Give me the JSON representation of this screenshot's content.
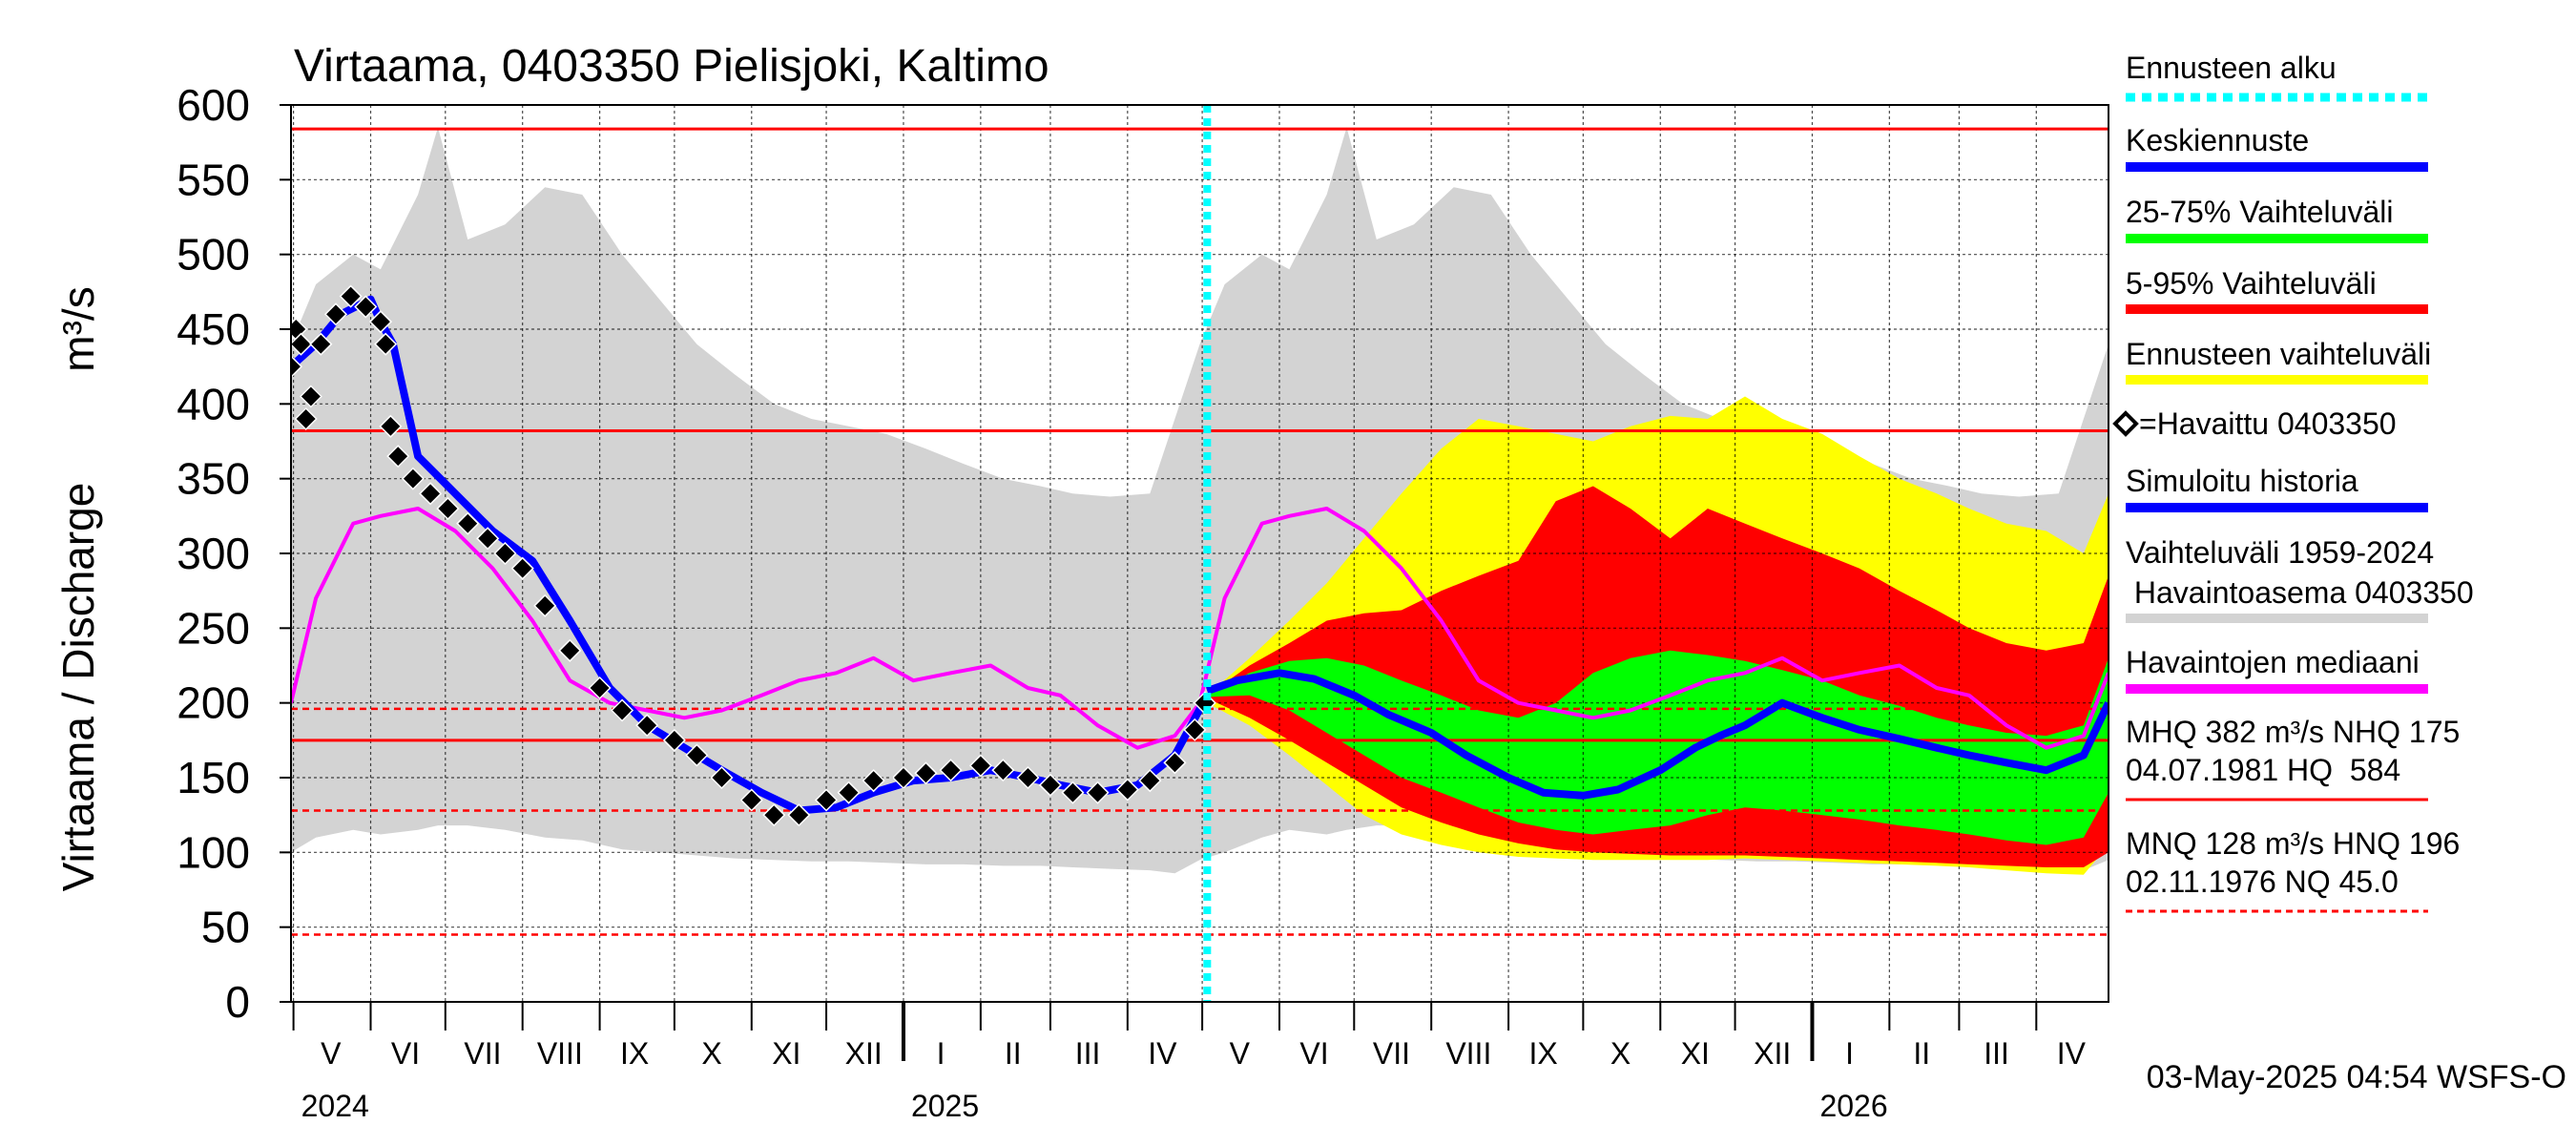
{
  "chart_data": {
    "type": "area",
    "title": "Virtaama, 0403350 Pielisjoki, Kaltimo",
    "ylabel": "Virtaama / Discharge",
    "yunit": "m³/s",
    "ylim": [
      0,
      600
    ],
    "yticks": [
      0,
      50,
      100,
      150,
      200,
      250,
      300,
      350,
      400,
      450,
      500,
      550,
      600
    ],
    "xlim": [
      "2024-04-30",
      "2026-04-30"
    ],
    "forecast_start": "2025-05-03",
    "month_labels": [
      {
        "label": "V",
        "date": "2024-05-16"
      },
      {
        "label": "VI",
        "date": "2024-06-15"
      },
      {
        "label": "VII",
        "date": "2024-07-16"
      },
      {
        "label": "VIII",
        "date": "2024-08-16"
      },
      {
        "label": "IX",
        "date": "2024-09-15"
      },
      {
        "label": "X",
        "date": "2024-10-16"
      },
      {
        "label": "XI",
        "date": "2024-11-15"
      },
      {
        "label": "XII",
        "date": "2024-12-16"
      },
      {
        "label": "I",
        "date": "2025-01-16"
      },
      {
        "label": "II",
        "date": "2025-02-14"
      },
      {
        "label": "III",
        "date": "2025-03-16"
      },
      {
        "label": "IV",
        "date": "2025-04-15"
      },
      {
        "label": "V",
        "date": "2025-05-16"
      },
      {
        "label": "VI",
        "date": "2025-06-15"
      },
      {
        "label": "VII",
        "date": "2025-07-16"
      },
      {
        "label": "VIII",
        "date": "2025-08-16"
      },
      {
        "label": "IX",
        "date": "2025-09-15"
      },
      {
        "label": "X",
        "date": "2025-10-16"
      },
      {
        "label": "XI",
        "date": "2025-11-15"
      },
      {
        "label": "XII",
        "date": "2025-12-16"
      },
      {
        "label": "I",
        "date": "2026-01-16"
      },
      {
        "label": "II",
        "date": "2026-02-14"
      },
      {
        "label": "III",
        "date": "2026-03-16"
      },
      {
        "label": "IV",
        "date": "2026-04-15"
      }
    ],
    "year_labels": [
      {
        "label": "2024",
        "date": "2024-05-01"
      },
      {
        "label": "2025",
        "date": "2025-01-01"
      },
      {
        "label": "2026",
        "date": "2026-01-01"
      }
    ],
    "reference_lines": [
      {
        "name": "HQ",
        "value": 584,
        "style": "solid"
      },
      {
        "name": "MHQ",
        "value": 382,
        "style": "solid"
      },
      {
        "name": "HNQ",
        "value": 196,
        "style": "dashed"
      },
      {
        "name": "NHQ",
        "value": 175,
        "style": "solid"
      },
      {
        "name": "MNQ",
        "value": 128,
        "style": "dashed"
      },
      {
        "name": "NQ",
        "value": 45,
        "style": "dashed"
      }
    ],
    "series": [
      {
        "name": "Vaihteluväli 1959-2024 Havaintoasema 0403350",
        "kind": "band",
        "color": "#d3d3d3",
        "x": [
          "2024-04-30",
          "2024-05-10",
          "2024-05-25",
          "2024-06-05",
          "2024-06-20",
          "2024-06-28",
          "2024-07-10",
          "2024-07-25",
          "2024-08-10",
          "2024-08-25",
          "2024-09-10",
          "2024-09-25",
          "2024-10-10",
          "2024-10-25",
          "2024-11-10",
          "2024-11-25",
          "2024-12-10",
          "2024-12-25",
          "2025-01-10",
          "2025-01-25",
          "2025-02-10",
          "2025-02-25",
          "2025-03-10",
          "2025-03-25",
          "2025-04-10",
          "2025-04-20",
          "2025-04-30",
          "2025-05-10",
          "2025-05-25",
          "2025-06-05",
          "2025-06-20",
          "2025-06-28",
          "2025-07-10",
          "2025-07-25",
          "2025-08-10",
          "2025-08-25",
          "2025-09-10",
          "2025-09-25",
          "2025-10-10",
          "2025-10-25",
          "2025-11-10",
          "2025-11-25",
          "2025-12-10",
          "2025-12-25",
          "2026-01-10",
          "2026-01-25",
          "2026-02-10",
          "2026-02-25",
          "2026-03-10",
          "2026-03-25",
          "2026-04-10",
          "2026-04-20",
          "2026-04-30"
        ],
        "upper": [
          440,
          480,
          500,
          490,
          540,
          585,
          510,
          520,
          545,
          540,
          500,
          470,
          440,
          420,
          400,
          390,
          385,
          380,
          370,
          360,
          350,
          345,
          340,
          338,
          340,
          390,
          440,
          480,
          500,
          490,
          540,
          585,
          510,
          520,
          545,
          540,
          500,
          470,
          440,
          420,
          400,
          390,
          385,
          380,
          370,
          360,
          350,
          345,
          340,
          338,
          340,
          390,
          440
        ],
        "lower": [
          100,
          110,
          115,
          112,
          115,
          118,
          118,
          115,
          110,
          108,
          102,
          100,
          98,
          96,
          95,
          94,
          94,
          93,
          92,
          92,
          91,
          91,
          90,
          89,
          88,
          86,
          95,
          100,
          110,
          115,
          112,
          115,
          118,
          118,
          115,
          110,
          108,
          102,
          100,
          98,
          96,
          95,
          94,
          94,
          93,
          92,
          92,
          91,
          91,
          90,
          89,
          88,
          95
        ]
      },
      {
        "name": "Ennusteen vaihteluväli",
        "kind": "band",
        "color": "#ffff00",
        "x": [
          "2025-05-03",
          "2025-05-20",
          "2025-06-05",
          "2025-06-20",
          "2025-07-05",
          "2025-07-20",
          "2025-08-05",
          "2025-08-20",
          "2025-09-05",
          "2025-09-20",
          "2025-10-05",
          "2025-10-20",
          "2025-11-05",
          "2025-11-20",
          "2025-12-05",
          "2025-12-20",
          "2026-01-05",
          "2026-01-20",
          "2026-02-05",
          "2026-02-20",
          "2026-03-05",
          "2026-03-20",
          "2026-04-05",
          "2026-04-20",
          "2026-04-30"
        ],
        "upper": [
          205,
          230,
          255,
          280,
          310,
          340,
          370,
          390,
          385,
          380,
          375,
          385,
          392,
          390,
          405,
          390,
          380,
          365,
          350,
          340,
          330,
          320,
          315,
          300,
          340
        ],
        "lower": [
          200,
          185,
          165,
          145,
          125,
          112,
          105,
          100,
          97,
          96,
          95,
          95,
          95,
          95,
          96,
          95,
          94,
          93,
          92,
          91,
          90,
          88,
          86,
          85,
          105
        ]
      },
      {
        "name": "5-95% Vaihteluväli",
        "kind": "band",
        "color": "#ff0000",
        "x": [
          "2025-05-03",
          "2025-05-20",
          "2025-06-05",
          "2025-06-20",
          "2025-07-05",
          "2025-07-20",
          "2025-08-05",
          "2025-08-20",
          "2025-09-05",
          "2025-09-20",
          "2025-10-05",
          "2025-10-20",
          "2025-11-05",
          "2025-11-20",
          "2025-12-05",
          "2025-12-20",
          "2026-01-05",
          "2026-01-20",
          "2026-02-05",
          "2026-02-20",
          "2026-03-05",
          "2026-03-20",
          "2026-04-05",
          "2026-04-20",
          "2026-04-30"
        ],
        "upper": [
          205,
          225,
          240,
          255,
          260,
          262,
          275,
          285,
          295,
          335,
          345,
          330,
          310,
          330,
          320,
          310,
          300,
          290,
          275,
          262,
          250,
          240,
          235,
          240,
          285
        ],
        "lower": [
          203,
          190,
          175,
          160,
          145,
          130,
          120,
          112,
          106,
          102,
          100,
          99,
          98,
          98,
          98,
          97,
          96,
          95,
          94,
          93,
          92,
          91,
          90,
          90,
          100
        ]
      },
      {
        "name": "25-75% Vaihteluväli",
        "kind": "band",
        "color": "#00ff00",
        "x": [
          "2025-05-03",
          "2025-05-20",
          "2025-06-05",
          "2025-06-20",
          "2025-07-05",
          "2025-07-20",
          "2025-08-05",
          "2025-08-20",
          "2025-09-05",
          "2025-09-20",
          "2025-10-05",
          "2025-10-20",
          "2025-11-05",
          "2025-11-20",
          "2025-12-05",
          "2025-12-20",
          "2026-01-05",
          "2026-01-20",
          "2026-02-05",
          "2026-02-20",
          "2026-03-05",
          "2026-03-20",
          "2026-04-05",
          "2026-04-20",
          "2026-04-30"
        ],
        "upper": [
          205,
          220,
          228,
          230,
          225,
          215,
          205,
          195,
          190,
          200,
          220,
          230,
          235,
          232,
          228,
          222,
          215,
          205,
          198,
          190,
          185,
          180,
          178,
          185,
          230
        ],
        "lower": [
          204,
          205,
          195,
          180,
          165,
          150,
          140,
          130,
          120,
          115,
          112,
          115,
          118,
          125,
          130,
          128,
          125,
          122,
          118,
          115,
          112,
          108,
          105,
          110,
          140
        ]
      },
      {
        "name": "Keskiennuste",
        "kind": "line",
        "color": "#0000ff",
        "x": [
          "2025-05-03",
          "2025-05-15",
          "2025-06-01",
          "2025-06-15",
          "2025-07-01",
          "2025-07-15",
          "2025-08-01",
          "2025-08-15",
          "2025-09-01",
          "2025-09-15",
          "2025-10-01",
          "2025-10-15",
          "2025-11-01",
          "2025-11-15",
          "2025-11-25",
          "2025-12-05",
          "2025-12-20",
          "2026-01-05",
          "2026-01-20",
          "2026-02-05",
          "2026-02-20",
          "2026-03-05",
          "2026-03-20",
          "2026-04-05",
          "2026-04-20",
          "2026-04-30"
        ],
        "y": [
          208,
          215,
          220,
          216,
          205,
          192,
          180,
          165,
          150,
          140,
          138,
          142,
          155,
          170,
          178,
          185,
          200,
          190,
          182,
          176,
          170,
          165,
          160,
          155,
          165,
          200
        ]
      },
      {
        "name": "Havaintojen mediaani",
        "kind": "line",
        "color": "#ff00ff",
        "x": [
          "2024-04-30",
          "2024-05-10",
          "2024-05-25",
          "2024-06-05",
          "2024-06-20",
          "2024-07-05",
          "2024-07-20",
          "2024-08-05",
          "2024-08-20",
          "2024-09-05",
          "2024-09-20",
          "2024-10-05",
          "2024-10-20",
          "2024-11-05",
          "2024-11-20",
          "2024-12-05",
          "2024-12-20",
          "2025-01-05",
          "2025-01-20",
          "2025-02-05",
          "2025-02-20",
          "2025-03-05",
          "2025-03-20",
          "2025-04-05",
          "2025-04-20",
          "2025-04-30",
          "2025-05-10",
          "2025-05-25",
          "2025-06-05",
          "2025-06-20",
          "2025-07-05",
          "2025-07-20",
          "2025-08-05",
          "2025-08-20",
          "2025-09-05",
          "2025-09-20",
          "2025-10-05",
          "2025-10-20",
          "2025-11-05",
          "2025-11-20",
          "2025-12-05",
          "2025-12-20",
          "2026-01-05",
          "2026-01-20",
          "2026-02-05",
          "2026-02-20",
          "2026-03-05",
          "2026-03-20",
          "2026-04-05",
          "2026-04-20",
          "2026-04-30"
        ],
        "y": [
          200,
          270,
          320,
          325,
          330,
          315,
          290,
          255,
          215,
          200,
          195,
          190,
          195,
          205,
          215,
          220,
          230,
          215,
          220,
          225,
          210,
          205,
          185,
          170,
          178,
          200,
          270,
          320,
          325,
          330,
          315,
          290,
          255,
          215,
          200,
          195,
          190,
          195,
          205,
          215,
          220,
          230,
          215,
          220,
          225,
          210,
          205,
          185,
          170,
          178,
          220
        ]
      },
      {
        "name": "Simuloitu historia",
        "kind": "line",
        "color": "#0000ff",
        "x": [
          "2024-04-30",
          "2024-05-10",
          "2024-05-20",
          "2024-06-01",
          "2024-06-05",
          "2024-06-10",
          "2024-06-20",
          "2024-07-05",
          "2024-07-20",
          "2024-08-05",
          "2024-08-20",
          "2024-09-05",
          "2024-09-20",
          "2024-10-05",
          "2024-10-20",
          "2024-11-05",
          "2024-11-20",
          "2024-12-05",
          "2024-12-20",
          "2025-01-05",
          "2025-01-20",
          "2025-02-05",
          "2025-02-20",
          "2025-03-05",
          "2025-03-20",
          "2025-04-05",
          "2025-04-20",
          "2025-05-03"
        ],
        "y": [
          425,
          440,
          460,
          470,
          455,
          440,
          365,
          340,
          315,
          295,
          255,
          210,
          185,
          170,
          155,
          140,
          128,
          130,
          140,
          148,
          150,
          155,
          150,
          145,
          140,
          145,
          165,
          205
        ]
      },
      {
        "name": "Havaittu 0403350",
        "kind": "points",
        "color": "#000000",
        "x": [
          "2024-04-30",
          "2024-05-02",
          "2024-05-04",
          "2024-05-06",
          "2024-05-08",
          "2024-05-12",
          "2024-05-18",
          "2024-05-24",
          "2024-05-30",
          "2024-06-05",
          "2024-06-07",
          "2024-06-09",
          "2024-06-12",
          "2024-06-18",
          "2024-06-25",
          "2024-07-02",
          "2024-07-10",
          "2024-07-18",
          "2024-07-25",
          "2024-08-01",
          "2024-08-10",
          "2024-08-20",
          "2024-09-01",
          "2024-09-10",
          "2024-09-20",
          "2024-10-01",
          "2024-10-10",
          "2024-10-20",
          "2024-11-01",
          "2024-11-10",
          "2024-11-20",
          "2024-12-01",
          "2024-12-10",
          "2024-12-20",
          "2025-01-01",
          "2025-01-10",
          "2025-01-20",
          "2025-02-01",
          "2025-02-10",
          "2025-02-20",
          "2025-03-01",
          "2025-03-10",
          "2025-03-20",
          "2025-04-01",
          "2025-04-10",
          "2025-04-20",
          "2025-04-28",
          "2025-05-02"
        ],
        "y": [
          425,
          450,
          440,
          390,
          405,
          440,
          460,
          472,
          465,
          455,
          440,
          385,
          365,
          350,
          340,
          330,
          320,
          310,
          300,
          290,
          265,
          235,
          210,
          195,
          185,
          175,
          165,
          150,
          135,
          125,
          125,
          135,
          140,
          148,
          150,
          153,
          155,
          158,
          155,
          150,
          145,
          140,
          140,
          142,
          148,
          160,
          182,
          200
        ]
      }
    ],
    "legend": [
      {
        "label": "Ennusteen alku",
        "color": "#00ffff",
        "style": "dotted"
      },
      {
        "label": "Keskiennuste",
        "color": "#0000ff",
        "style": "line"
      },
      {
        "label": "25-75% Vaihteluväli",
        "color": "#00ff00",
        "style": "line"
      },
      {
        "label": "5-95% Vaihteluväli",
        "color": "#ff0000",
        "style": "line"
      },
      {
        "label": "Ennusteen vaihteluväli",
        "color": "#ffff00",
        "style": "line"
      },
      {
        "label": "=Havaittu 0403350",
        "color": "#000000",
        "style": "marker"
      },
      {
        "label": "Simuloitu historia",
        "color": "#0000ff",
        "style": "line"
      },
      {
        "label": "Vaihteluväli 1959-2024",
        "label2": " Havaintoasema 0403350",
        "color": "#d3d3d3",
        "style": "line"
      },
      {
        "label": "Havaintojen mediaani",
        "color": "#ff00ff",
        "style": "line"
      },
      {
        "label": "MHQ  382 m³/s NHQ  175",
        "label2": "04.07.1981 HQ  584",
        "color": "#ff0000",
        "style": "line"
      },
      {
        "label": "MNQ  128 m³/s HNQ  196",
        "label2": "02.11.1976 NQ 45.0",
        "color": "#ff0000",
        "style": "dashed"
      }
    ],
    "legend_position": "right",
    "grid": true,
    "footer": "03-May-2025 04:54 WSFS-O"
  }
}
